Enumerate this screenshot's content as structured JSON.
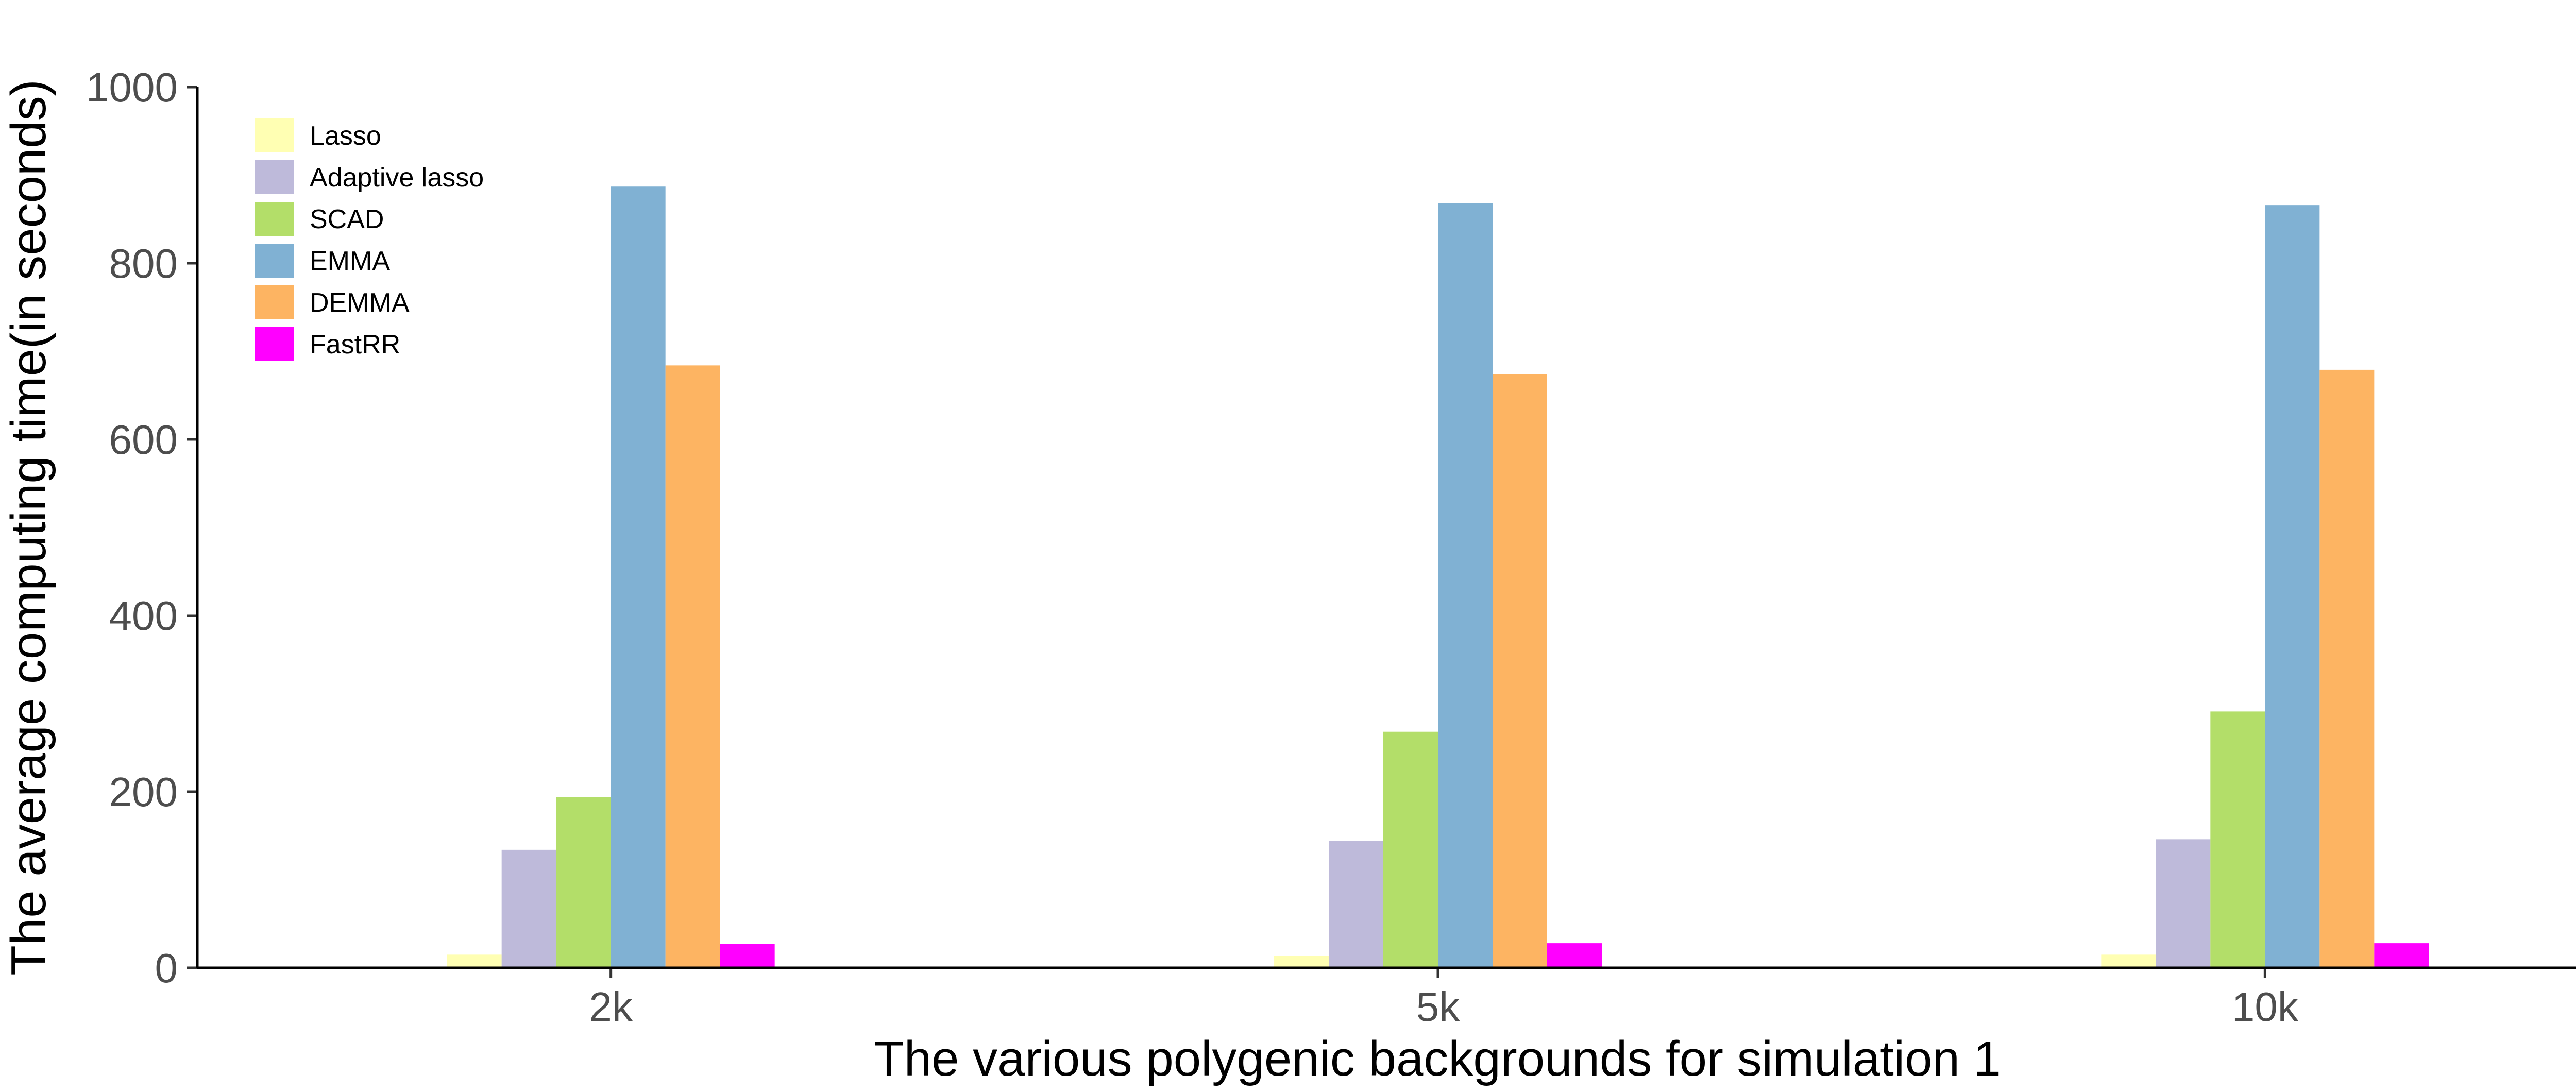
{
  "chart_data": {
    "type": "bar",
    "xlabel": "The various polygenic backgrounds for simulation 1",
    "ylabel": "The average computing time(in seconds)",
    "categories": [
      "2k",
      "5k",
      "10k"
    ],
    "ylim": [
      0,
      1000
    ],
    "yticks": [
      0,
      200,
      400,
      600,
      800,
      1000
    ],
    "legend_position": "top-left",
    "grid": false,
    "series": [
      {
        "name": "Lasso",
        "color": "#FFFFB3",
        "values": [
          15,
          14,
          15
        ]
      },
      {
        "name": "Adaptive lasso",
        "color": "#BEBADA",
        "values": [
          134,
          144,
          146
        ]
      },
      {
        "name": "SCAD",
        "color": "#B3DE69",
        "values": [
          194,
          268,
          291
        ]
      },
      {
        "name": "EMMA",
        "color": "#80B1D3",
        "values": [
          887,
          868,
          866
        ]
      },
      {
        "name": "DEMMA",
        "color": "#FDB462",
        "values": [
          684,
          674,
          679
        ]
      },
      {
        "name": "FastRR",
        "color": "#FF00FF",
        "values": [
          27,
          28,
          28
        ]
      }
    ]
  }
}
